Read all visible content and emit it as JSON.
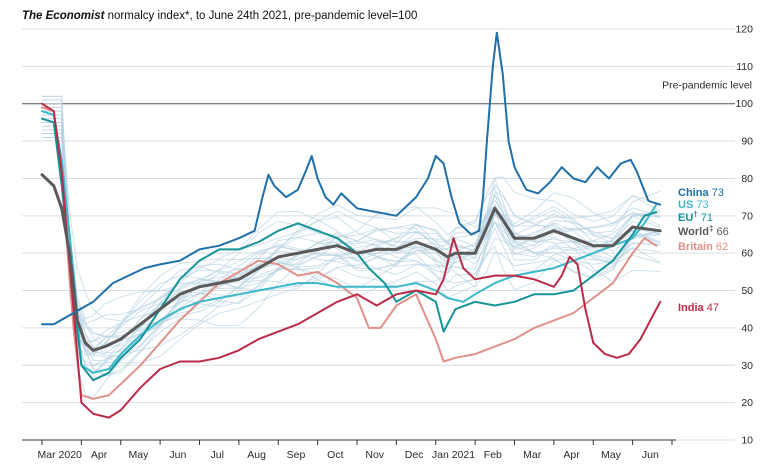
{
  "chart_data": {
    "type": "line",
    "title_italic": "The Economist",
    "title_rest": " normalcy index*, to June 24th 2021, pre-pandemic level=100",
    "ylim": [
      10,
      120
    ],
    "yticks": [
      10,
      20,
      30,
      40,
      50,
      60,
      70,
      80,
      90,
      100,
      110,
      120
    ],
    "x_range": [
      0,
      16
    ],
    "xticks": [
      {
        "label": "Mar 2020",
        "pos": 0.45
      },
      {
        "label": "Apr",
        "pos": 1.45
      },
      {
        "label": "May",
        "pos": 2.45
      },
      {
        "label": "Jun",
        "pos": 3.45
      },
      {
        "label": "Jul",
        "pos": 4.45
      },
      {
        "label": "Aug",
        "pos": 5.45
      },
      {
        "label": "Sep",
        "pos": 6.45
      },
      {
        "label": "Oct",
        "pos": 7.45
      },
      {
        "label": "Nov",
        "pos": 8.45
      },
      {
        "label": "Dec",
        "pos": 9.45
      },
      {
        "label": "Jan 2021",
        "pos": 10.45
      },
      {
        "label": "Feb",
        "pos": 11.45
      },
      {
        "label": "Mar",
        "pos": 12.45
      },
      {
        "label": "Apr",
        "pos": 13.45
      },
      {
        "label": "May",
        "pos": 14.45
      },
      {
        "label": "Jun",
        "pos": 15.45
      }
    ],
    "reference_line": {
      "value": 100,
      "label": "Pre-pandemic level"
    },
    "series": [
      {
        "name": "China",
        "value_label": "73",
        "dagger": "",
        "color": "#1f6fa8",
        "width": 2,
        "points": [
          [
            0,
            41
          ],
          [
            0.3,
            41
          ],
          [
            0.8,
            44
          ],
          [
            1.3,
            47
          ],
          [
            1.8,
            52
          ],
          [
            2.2,
            54
          ],
          [
            2.6,
            56
          ],
          [
            3,
            57
          ],
          [
            3.5,
            58
          ],
          [
            4,
            61
          ],
          [
            4.5,
            62
          ],
          [
            5,
            64
          ],
          [
            5.4,
            66
          ],
          [
            5.6,
            75
          ],
          [
            5.75,
            81
          ],
          [
            5.9,
            78
          ],
          [
            6.2,
            75
          ],
          [
            6.5,
            77
          ],
          [
            6.7,
            82
          ],
          [
            6.85,
            86
          ],
          [
            7,
            80
          ],
          [
            7.2,
            75
          ],
          [
            7.4,
            73
          ],
          [
            7.6,
            76
          ],
          [
            7.8,
            74
          ],
          [
            8,
            72
          ],
          [
            8.5,
            71
          ],
          [
            9,
            70
          ],
          [
            9.5,
            75
          ],
          [
            9.8,
            80
          ],
          [
            10,
            86
          ],
          [
            10.2,
            84
          ],
          [
            10.4,
            75
          ],
          [
            10.6,
            68
          ],
          [
            10.9,
            65
          ],
          [
            11.1,
            66
          ],
          [
            11.2,
            75
          ],
          [
            11.3,
            90
          ],
          [
            11.45,
            110
          ],
          [
            11.55,
            119
          ],
          [
            11.7,
            108
          ],
          [
            11.85,
            90
          ],
          [
            12,
            83
          ],
          [
            12.3,
            77
          ],
          [
            12.6,
            76
          ],
          [
            12.9,
            79
          ],
          [
            13.2,
            83
          ],
          [
            13.5,
            80
          ],
          [
            13.8,
            79
          ],
          [
            14.1,
            83
          ],
          [
            14.4,
            80
          ],
          [
            14.7,
            84
          ],
          [
            14.95,
            85
          ],
          [
            15.1,
            82
          ],
          [
            15.4,
            74
          ],
          [
            15.7,
            73
          ]
        ]
      },
      {
        "name": "World",
        "value_label": "66",
        "dagger": "‡",
        "color": "#5a5a5a",
        "width": 3,
        "points": [
          [
            0,
            81
          ],
          [
            0.3,
            78
          ],
          [
            0.5,
            72
          ],
          [
            0.7,
            60
          ],
          [
            0.9,
            42
          ],
          [
            1.1,
            36
          ],
          [
            1.3,
            34
          ],
          [
            1.6,
            35
          ],
          [
            2,
            37
          ],
          [
            2.5,
            41
          ],
          [
            3,
            45
          ],
          [
            3.5,
            49
          ],
          [
            4,
            51
          ],
          [
            4.5,
            52
          ],
          [
            5,
            53
          ],
          [
            5.5,
            56
          ],
          [
            6,
            59
          ],
          [
            6.5,
            60
          ],
          [
            7,
            61
          ],
          [
            7.5,
            62
          ],
          [
            8,
            60
          ],
          [
            8.5,
            61
          ],
          [
            9,
            61
          ],
          [
            9.5,
            63
          ],
          [
            10,
            61
          ],
          [
            10.3,
            59
          ],
          [
            10.5,
            60
          ],
          [
            11,
            60
          ],
          [
            11.3,
            67
          ],
          [
            11.5,
            72
          ],
          [
            11.7,
            69
          ],
          [
            12,
            64
          ],
          [
            12.5,
            64
          ],
          [
            13,
            66
          ],
          [
            13.5,
            64
          ],
          [
            14,
            62
          ],
          [
            14.5,
            62
          ],
          [
            15,
            67
          ],
          [
            15.7,
            66
          ]
        ]
      },
      {
        "name": "US",
        "value_label": "73",
        "dagger": "",
        "color": "#3cb8c8",
        "width": 2,
        "points": [
          [
            0,
            98
          ],
          [
            0.3,
            97
          ],
          [
            0.5,
            85
          ],
          [
            0.8,
            55
          ],
          [
            1,
            30
          ],
          [
            1.3,
            28
          ],
          [
            1.7,
            29
          ],
          [
            2,
            33
          ],
          [
            2.5,
            38
          ],
          [
            3,
            42
          ],
          [
            3.5,
            45
          ],
          [
            4,
            47
          ],
          [
            4.5,
            48
          ],
          [
            5,
            49
          ],
          [
            5.5,
            50
          ],
          [
            6,
            51
          ],
          [
            6.5,
            52
          ],
          [
            7,
            52
          ],
          [
            7.5,
            51
          ],
          [
            8,
            51
          ],
          [
            8.5,
            51
          ],
          [
            9,
            51
          ],
          [
            9.5,
            52
          ],
          [
            10,
            50
          ],
          [
            10.3,
            48
          ],
          [
            10.7,
            47
          ],
          [
            11,
            49
          ],
          [
            11.5,
            52
          ],
          [
            12,
            54
          ],
          [
            12.5,
            55
          ],
          [
            13,
            56
          ],
          [
            13.5,
            58
          ],
          [
            14,
            60
          ],
          [
            14.5,
            62
          ],
          [
            15,
            64
          ],
          [
            15.3,
            68
          ],
          [
            15.6,
            73
          ]
        ]
      },
      {
        "name": "EU",
        "value_label": "71",
        "dagger": "†",
        "color": "#17949a",
        "width": 2,
        "points": [
          [
            0,
            96
          ],
          [
            0.3,
            95
          ],
          [
            0.5,
            78
          ],
          [
            0.8,
            48
          ],
          [
            1,
            30
          ],
          [
            1.3,
            26
          ],
          [
            1.7,
            28
          ],
          [
            2,
            32
          ],
          [
            2.5,
            37
          ],
          [
            3,
            45
          ],
          [
            3.5,
            53
          ],
          [
            4,
            58
          ],
          [
            4.5,
            61
          ],
          [
            5,
            61
          ],
          [
            5.5,
            63
          ],
          [
            6,
            66
          ],
          [
            6.5,
            68
          ],
          [
            7,
            66
          ],
          [
            7.5,
            64
          ],
          [
            8,
            60
          ],
          [
            8.3,
            56
          ],
          [
            8.7,
            52
          ],
          [
            9,
            47
          ],
          [
            9.5,
            50
          ],
          [
            10,
            47
          ],
          [
            10.2,
            39
          ],
          [
            10.5,
            45
          ],
          [
            11,
            47
          ],
          [
            11.5,
            46
          ],
          [
            12,
            47
          ],
          [
            12.5,
            49
          ],
          [
            13,
            49
          ],
          [
            13.5,
            50
          ],
          [
            14,
            54
          ],
          [
            14.5,
            58
          ],
          [
            15,
            65
          ],
          [
            15.3,
            70
          ],
          [
            15.6,
            71
          ]
        ]
      },
      {
        "name": "Britain",
        "value_label": "62",
        "dagger": "",
        "color": "#e0918a",
        "width": 2,
        "points": [
          [
            0,
            99
          ],
          [
            0.3,
            98
          ],
          [
            0.5,
            80
          ],
          [
            0.8,
            40
          ],
          [
            1,
            22
          ],
          [
            1.3,
            21
          ],
          [
            1.7,
            22
          ],
          [
            2,
            25
          ],
          [
            2.5,
            30
          ],
          [
            3,
            36
          ],
          [
            3.5,
            42
          ],
          [
            4,
            47
          ],
          [
            4.5,
            52
          ],
          [
            5,
            55
          ],
          [
            5.5,
            58
          ],
          [
            6,
            57
          ],
          [
            6.5,
            54
          ],
          [
            7,
            55
          ],
          [
            7.5,
            52
          ],
          [
            8,
            48
          ],
          [
            8.3,
            40
          ],
          [
            8.6,
            40
          ],
          [
            9,
            46
          ],
          [
            9.5,
            49
          ],
          [
            10,
            37
          ],
          [
            10.2,
            31
          ],
          [
            10.5,
            32
          ],
          [
            11,
            33
          ],
          [
            11.5,
            35
          ],
          [
            12,
            37
          ],
          [
            12.5,
            40
          ],
          [
            13,
            42
          ],
          [
            13.5,
            44
          ],
          [
            14,
            48
          ],
          [
            14.5,
            52
          ],
          [
            15,
            60
          ],
          [
            15.3,
            64
          ],
          [
            15.6,
            62
          ]
        ]
      },
      {
        "name": "India",
        "value_label": "47",
        "dagger": "",
        "color": "#bb2b47",
        "width": 2,
        "points": [
          [
            0,
            100
          ],
          [
            0.3,
            98
          ],
          [
            0.5,
            82
          ],
          [
            0.8,
            45
          ],
          [
            1,
            20
          ],
          [
            1.3,
            17
          ],
          [
            1.7,
            16
          ],
          [
            2,
            18
          ],
          [
            2.5,
            24
          ],
          [
            3,
            29
          ],
          [
            3.5,
            31
          ],
          [
            4,
            31
          ],
          [
            4.5,
            32
          ],
          [
            5,
            34
          ],
          [
            5.5,
            37
          ],
          [
            6,
            39
          ],
          [
            6.5,
            41
          ],
          [
            7,
            44
          ],
          [
            7.5,
            47
          ],
          [
            8,
            49
          ],
          [
            8.5,
            46
          ],
          [
            9,
            49
          ],
          [
            9.5,
            50
          ],
          [
            10,
            49
          ],
          [
            10.2,
            53
          ],
          [
            10.45,
            64
          ],
          [
            10.7,
            56
          ],
          [
            11,
            53
          ],
          [
            11.5,
            54
          ],
          [
            12,
            54
          ],
          [
            12.5,
            53
          ],
          [
            13,
            51
          ],
          [
            13.2,
            54
          ],
          [
            13.4,
            59
          ],
          [
            13.6,
            57
          ],
          [
            13.8,
            45
          ],
          [
            14,
            36
          ],
          [
            14.3,
            33
          ],
          [
            14.6,
            32
          ],
          [
            14.9,
            33
          ],
          [
            15.2,
            37
          ],
          [
            15.5,
            43
          ],
          [
            15.7,
            47
          ]
        ]
      }
    ]
  }
}
